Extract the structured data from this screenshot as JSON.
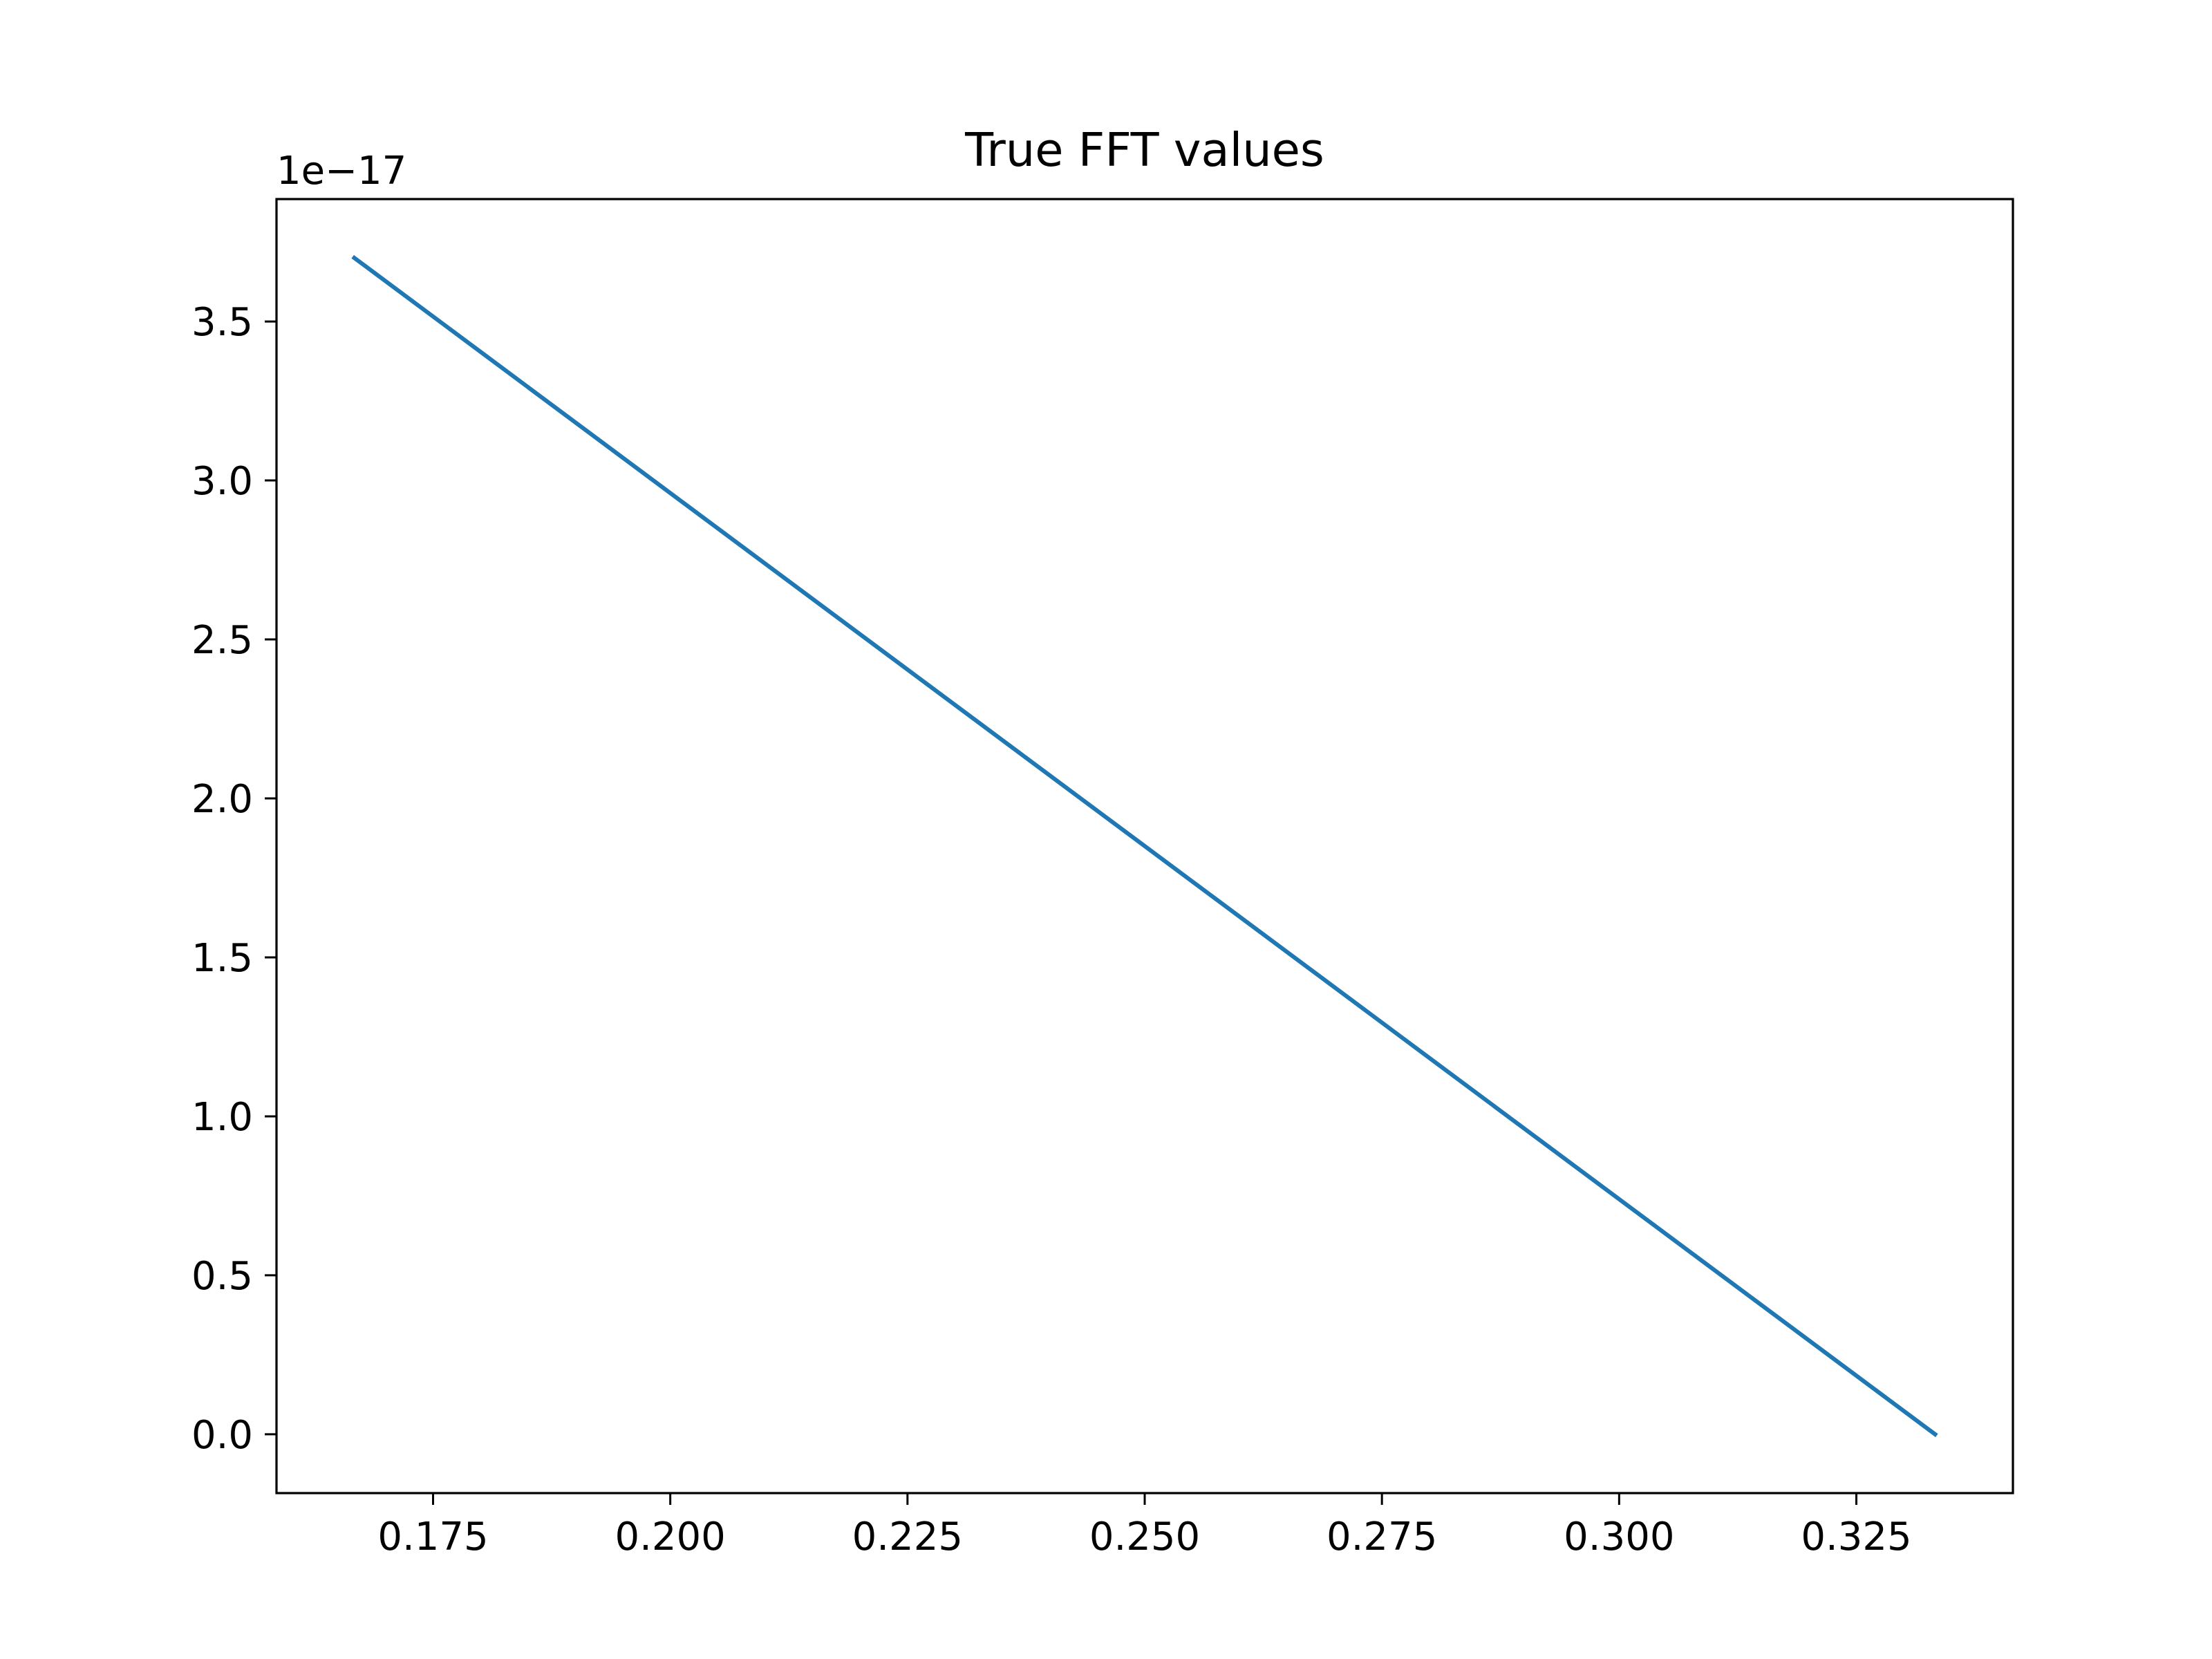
{
  "chart_data": {
    "type": "line",
    "title": "True FFT values",
    "xlabel": "",
    "ylabel": "",
    "y_offset_label": "1e−17",
    "xlim": [
      0.1585,
      0.3415
    ],
    "ylim": [
      -0.185,
      3.885
    ],
    "x_ticks": [
      0.175,
      0.2,
      0.225,
      0.25,
      0.275,
      0.3,
      0.325
    ],
    "x_tick_labels": [
      "0.175",
      "0.200",
      "0.225",
      "0.250",
      "0.275",
      "0.300",
      "0.325"
    ],
    "y_ticks": [
      0.0,
      0.5,
      1.0,
      1.5,
      2.0,
      2.5,
      3.0,
      3.5
    ],
    "y_tick_labels": [
      "0.0",
      "0.5",
      "1.0",
      "1.5",
      "2.0",
      "2.5",
      "3.0",
      "3.5"
    ],
    "grid": false,
    "series": [
      {
        "color": "#1f77b4",
        "x": [
          0.1667,
          0.3333
        ],
        "y": [
          3.7,
          0.0
        ]
      }
    ]
  }
}
